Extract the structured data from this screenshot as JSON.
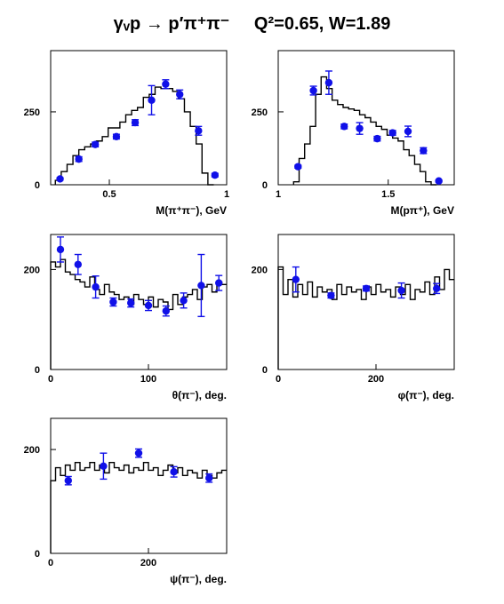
{
  "title": {
    "reaction": "γᵥp → p′π⁺π⁻",
    "kinematics": "Q²=0.65, W=1.89"
  },
  "colors": {
    "data_points": "#1010e8",
    "histogram": "#000000",
    "frame": "#000000"
  },
  "chart_data": [
    {
      "type": "line",
      "xlabel": "M(π⁺π⁻), GeV",
      "xlim": [
        0.25,
        1.0
      ],
      "ylim": [
        0,
        460
      ],
      "xticks": [
        0.5,
        1
      ],
      "xtick_labels": [
        "0.5",
        "1"
      ],
      "yticks": [
        0,
        250
      ],
      "ytick_labels": [
        "0",
        "250"
      ],
      "histogram": {
        "x_start": 0.27,
        "bin_width": 0.025,
        "values": [
          15,
          45,
          70,
          100,
          120,
          130,
          140,
          150,
          165,
          195,
          195,
          215,
          240,
          255,
          265,
          300,
          310,
          335,
          330,
          330,
          320,
          295,
          250,
          200,
          140,
          40,
          0
        ]
      },
      "points": [
        {
          "x": 0.29,
          "y": 20,
          "err": 4
        },
        {
          "x": 0.37,
          "y": 88,
          "err": 8
        },
        {
          "x": 0.44,
          "y": 138,
          "err": 8
        },
        {
          "x": 0.53,
          "y": 165,
          "err": 8
        },
        {
          "x": 0.61,
          "y": 213,
          "err": 10
        },
        {
          "x": 0.68,
          "y": 290,
          "err": 50
        },
        {
          "x": 0.74,
          "y": 345,
          "err": 15
        },
        {
          "x": 0.8,
          "y": 310,
          "err": 15
        },
        {
          "x": 0.88,
          "y": 185,
          "err": 15
        },
        {
          "x": 0.95,
          "y": 33,
          "err": 6
        }
      ]
    },
    {
      "type": "line",
      "xlabel": "M(pπ⁺), GeV",
      "xlim": [
        1.0,
        1.8
      ],
      "ylim": [
        0,
        460
      ],
      "xticks": [
        1,
        1.5
      ],
      "xtick_labels": [
        "1",
        "1.5"
      ],
      "yticks": [
        0,
        250
      ],
      "ytick_labels": [
        "0",
        "250"
      ],
      "histogram": {
        "x_start": 1.07,
        "bin_width": 0.025,
        "values": [
          10,
          90,
          140,
          200,
          310,
          370,
          330,
          290,
          275,
          265,
          260,
          255,
          240,
          230,
          215,
          200,
          190,
          170,
          160,
          150,
          120,
          100,
          70,
          45,
          10,
          0
        ]
      },
      "points": [
        {
          "x": 1.09,
          "y": 62,
          "err": 5
        },
        {
          "x": 1.16,
          "y": 323,
          "err": 15
        },
        {
          "x": 1.23,
          "y": 350,
          "err": 40
        },
        {
          "x": 1.3,
          "y": 200,
          "err": 8
        },
        {
          "x": 1.37,
          "y": 193,
          "err": 20
        },
        {
          "x": 1.45,
          "y": 158,
          "err": 8
        },
        {
          "x": 1.52,
          "y": 178,
          "err": 8
        },
        {
          "x": 1.59,
          "y": 183,
          "err": 18
        },
        {
          "x": 1.66,
          "y": 117,
          "err": 10
        },
        {
          "x": 1.73,
          "y": 13,
          "err": 3
        }
      ]
    },
    {
      "type": "line",
      "xlabel": "θ(π⁻), deg.",
      "xlim": [
        0,
        180
      ],
      "ylim": [
        0,
        270
      ],
      "xticks": [
        0,
        100
      ],
      "xtick_labels": [
        "0",
        "100"
      ],
      "yticks": [
        0,
        200
      ],
      "ytick_labels": [
        "0",
        "200"
      ],
      "histogram": {
        "x_start": 0,
        "bin_width": 5,
        "values": [
          215,
          205,
          220,
          195,
          190,
          180,
          175,
          165,
          185,
          160,
          150,
          170,
          155,
          150,
          140,
          145,
          130,
          150,
          140,
          130,
          145,
          125,
          140,
          135,
          120,
          150,
          130,
          145,
          150,
          160,
          140,
          165,
          170,
          155,
          175,
          170
        ]
      },
      "points": [
        {
          "x": 10,
          "y": 240,
          "err": 25
        },
        {
          "x": 28,
          "y": 210,
          "err": 20
        },
        {
          "x": 46,
          "y": 165,
          "err": 22
        },
        {
          "x": 64,
          "y": 135,
          "err": 8
        },
        {
          "x": 82,
          "y": 133,
          "err": 8
        },
        {
          "x": 100,
          "y": 128,
          "err": 10
        },
        {
          "x": 118,
          "y": 117,
          "err": 10
        },
        {
          "x": 136,
          "y": 138,
          "err": 15
        },
        {
          "x": 154,
          "y": 168,
          "err": 62
        },
        {
          "x": 172,
          "y": 173,
          "err": 15
        }
      ]
    },
    {
      "type": "line",
      "xlabel": "φ(π⁻), deg.",
      "xlim": [
        0,
        360
      ],
      "ylim": [
        0,
        270
      ],
      "xticks": [
        0,
        200
      ],
      "xtick_labels": [
        "0",
        "200"
      ],
      "yticks": [
        0,
        200
      ],
      "ytick_labels": [
        "0",
        "200"
      ],
      "histogram": {
        "x_start": 0,
        "bin_width": 10,
        "values": [
          205,
          150,
          180,
          145,
          170,
          150,
          175,
          145,
          165,
          155,
          160,
          140,
          170,
          150,
          165,
          155,
          160,
          140,
          165,
          150,
          170,
          155,
          160,
          145,
          165,
          150,
          170,
          140,
          160,
          155,
          175,
          150,
          185,
          160,
          200,
          180
        ]
      },
      "points": [
        {
          "x": 36,
          "y": 180,
          "err": 25
        },
        {
          "x": 108,
          "y": 148,
          "err": 5
        },
        {
          "x": 180,
          "y": 162,
          "err": 5
        },
        {
          "x": 252,
          "y": 158,
          "err": 15
        },
        {
          "x": 324,
          "y": 162,
          "err": 10
        }
      ]
    },
    {
      "type": "line",
      "xlabel": "ψ(π⁻), deg.",
      "xlim": [
        0,
        360
      ],
      "ylim": [
        0,
        260
      ],
      "xticks": [
        0,
        200
      ],
      "xtick_labels": [
        "0",
        "200"
      ],
      "yticks": [
        0,
        200
      ],
      "ytick_labels": [
        "0",
        "200"
      ],
      "histogram": {
        "x_start": 0,
        "bin_width": 10,
        "values": [
          140,
          165,
          150,
          170,
          160,
          175,
          160,
          165,
          175,
          160,
          170,
          155,
          175,
          165,
          160,
          170,
          155,
          165,
          160,
          175,
          160,
          165,
          150,
          160,
          170,
          155,
          165,
          150,
          160,
          155,
          145,
          160,
          150,
          145,
          155,
          160
        ]
      },
      "points": [
        {
          "x": 36,
          "y": 140,
          "err": 8
        },
        {
          "x": 108,
          "y": 168,
          "err": 25
        },
        {
          "x": 180,
          "y": 193,
          "err": 8
        },
        {
          "x": 252,
          "y": 157,
          "err": 10
        },
        {
          "x": 324,
          "y": 145,
          "err": 8
        }
      ]
    }
  ]
}
